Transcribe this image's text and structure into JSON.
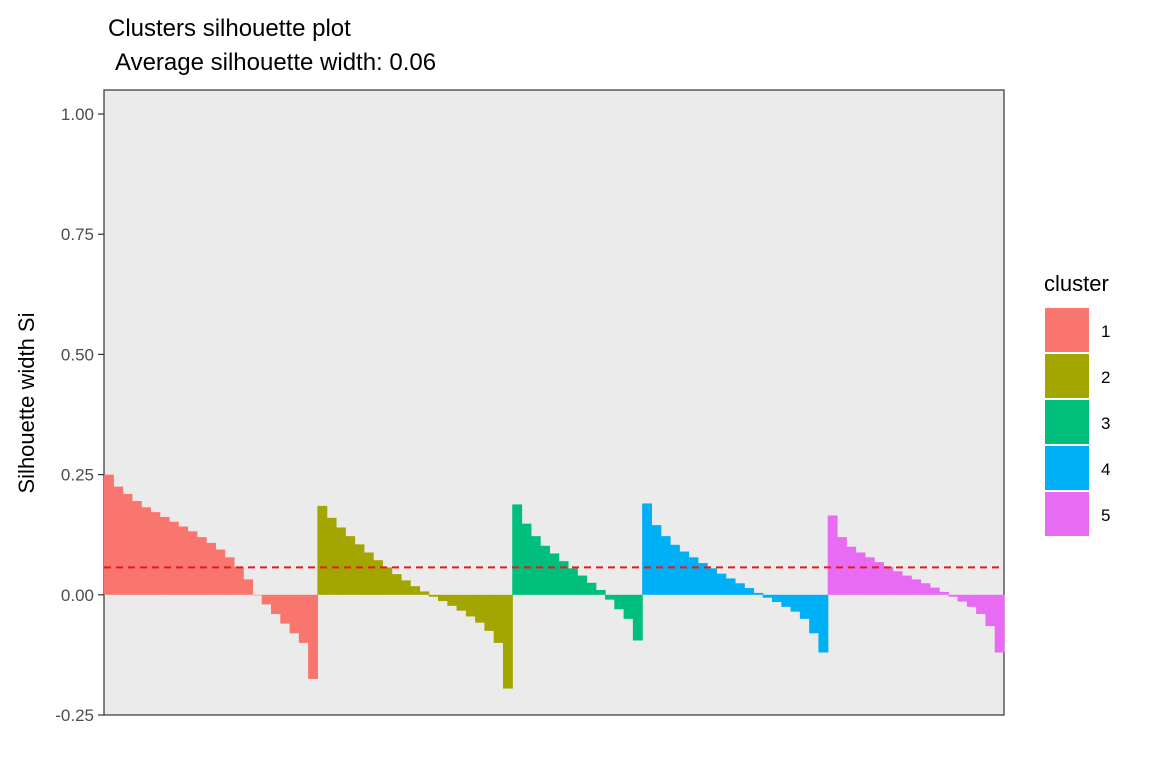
{
  "chart_data": {
    "type": "bar",
    "title": "Clusters silhouette plot",
    "subtitle": "Average silhouette width: 0.06",
    "xlabel": "",
    "ylabel": "Silhouette width Si",
    "ylim": [
      -0.25,
      1.05
    ],
    "yticks": [
      "-0.25",
      "0.00",
      "0.25",
      "0.50",
      "0.75",
      "1.00"
    ],
    "ytick_values": [
      -0.25,
      0,
      0.25,
      0.5,
      0.75,
      1.0
    ],
    "average_line": {
      "value": 0.057,
      "color": "#e41a1c",
      "style": "dashed"
    },
    "grid": false,
    "background": "#ebebeb",
    "legend": {
      "title": "cluster",
      "position": "right"
    },
    "series": [
      {
        "name": "1",
        "color": "#f8766d",
        "values": [
          0.25,
          0.225,
          0.21,
          0.195,
          0.182,
          0.172,
          0.162,
          0.152,
          0.142,
          0.132,
          0.12,
          0.108,
          0.094,
          0.078,
          0.058,
          0.032,
          0.0,
          -0.02,
          -0.04,
          -0.06,
          -0.08,
          -0.1,
          -0.175
        ]
      },
      {
        "name": "2",
        "color": "#a3a500",
        "values": [
          0.185,
          0.16,
          0.14,
          0.122,
          0.105,
          0.088,
          0.072,
          0.057,
          0.043,
          0.03,
          0.018,
          0.007,
          -0.004,
          -0.013,
          -0.023,
          -0.033,
          -0.045,
          -0.058,
          -0.075,
          -0.1,
          -0.195
        ]
      },
      {
        "name": "3",
        "color": "#00bf7d",
        "values": [
          0.188,
          0.148,
          0.122,
          0.102,
          0.086,
          0.07,
          0.055,
          0.04,
          0.025,
          0.01,
          -0.01,
          -0.03,
          -0.05,
          -0.095
        ]
      },
      {
        "name": "4",
        "color": "#00b0f6",
        "values": [
          0.19,
          0.145,
          0.122,
          0.104,
          0.09,
          0.078,
          0.066,
          0.055,
          0.044,
          0.034,
          0.024,
          0.014,
          0.004,
          -0.006,
          -0.015,
          -0.025,
          -0.035,
          -0.05,
          -0.08,
          -0.12
        ]
      },
      {
        "name": "5",
        "color": "#e76bf3",
        "values": [
          0.165,
          0.12,
          0.1,
          0.088,
          0.078,
          0.068,
          0.058,
          0.049,
          0.04,
          0.032,
          0.024,
          0.015,
          0.006,
          -0.004,
          -0.014,
          -0.025,
          -0.04,
          -0.065,
          -0.12
        ]
      }
    ]
  }
}
